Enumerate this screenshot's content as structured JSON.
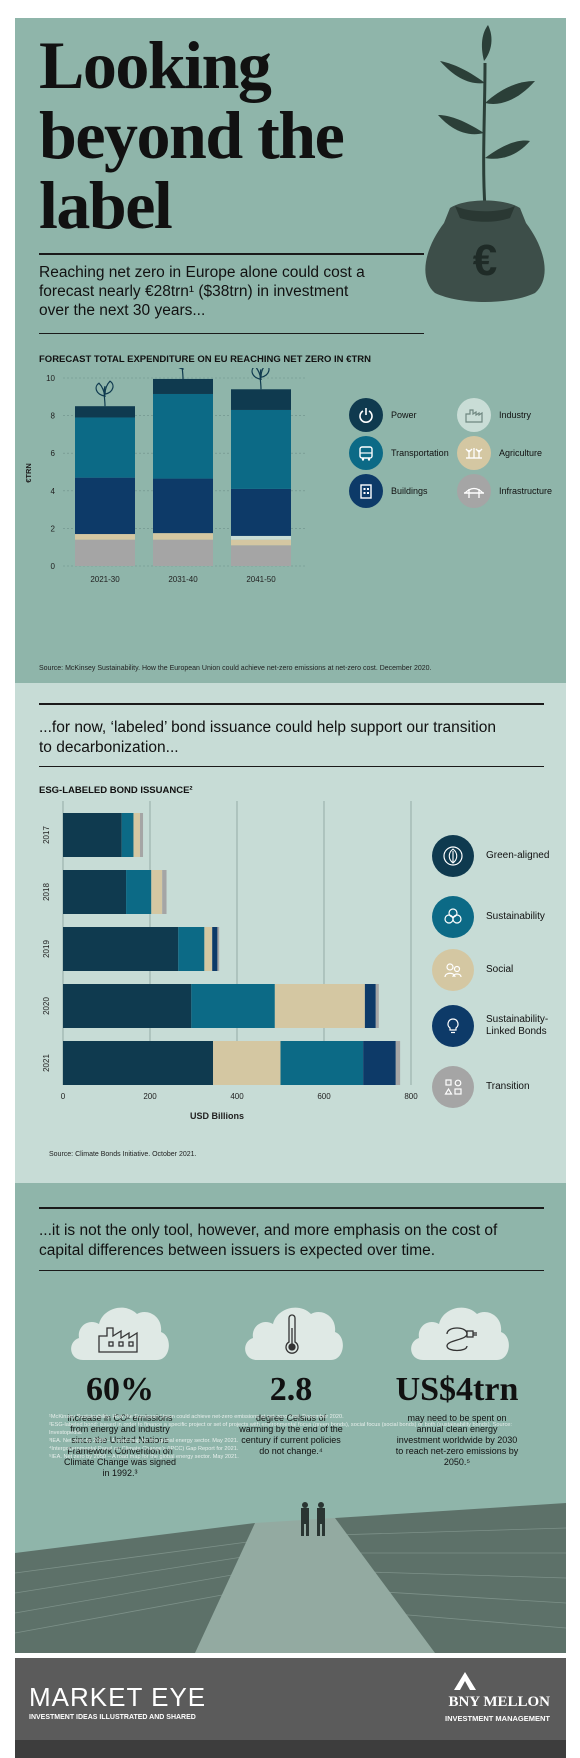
{
  "header": {
    "title": "Looking beyond the label",
    "intro": "Reaching net zero in Europe alone could cost a forecast nearly €28trn¹ ($38trn) in investment over the next 30 years..."
  },
  "colors": {
    "power": "#0f3a4f",
    "transportation": "#0c6a86",
    "buildings": "#0d3a68",
    "industry": "#c9ddd6",
    "agriculture": "#d4c7a2",
    "infrastructure": "#a5a5a5",
    "green": "#0f3a4f",
    "sustainability": "#0c6a86",
    "social": "#d4c7a2",
    "slb": "#0d3a68",
    "transition": "#a5a5a5"
  },
  "chart1": {
    "title": "FORECAST TOTAL EXPENDITURE ON EU REACHING NET ZERO IN €TRN",
    "ylabel": "€TRN",
    "yticks": [
      "0",
      "2",
      "4",
      "6",
      "8",
      "10"
    ],
    "source": "Source: McKinsey Sustainability. How the European Union could achieve net-zero emissions at net-zero cost. December 2020.",
    "legend": [
      {
        "label": "Power",
        "icon": "power-icon"
      },
      {
        "label": "Industry",
        "icon": "factory-icon"
      },
      {
        "label": "Transportation",
        "icon": "bus-icon"
      },
      {
        "label": "Agriculture",
        "icon": "farm-icon"
      },
      {
        "label": "Buildings",
        "icon": "building-icon"
      },
      {
        "label": "Infrastructure",
        "icon": "bridge-icon"
      }
    ]
  },
  "section2": {
    "lead": "...for now, ‘labeled’ bond issuance could help support our transition to decarbonization...",
    "chart_title": "ESG-LABELED BOND ISSUANCE²",
    "xlabel": "USD Billions",
    "xticks": [
      "0",
      "200",
      "400",
      "600",
      "800"
    ],
    "years": [
      "2017",
      "2018",
      "2019",
      "2020",
      "2021"
    ],
    "source": "Source: Climate Bonds Initiative. October 2021.",
    "legend": [
      {
        "label": "Green-aligned",
        "icon": "leaf-icon"
      },
      {
        "label": "Sustainability",
        "icon": "recycle-icon"
      },
      {
        "label": "Social",
        "icon": "people-icon"
      },
      {
        "label": "Sustainability-Linked Bonds",
        "icon": "lightbulb-icon"
      },
      {
        "label": "Transition",
        "icon": "shapes-icon"
      }
    ]
  },
  "section3": {
    "lead": "...it is not the only tool, however, and more emphasis on the cost of capital differences between issuers is expected over time.",
    "stats": [
      {
        "value": "60%",
        "text": "increase in CO² emissions from energy and industry since the United Nations Framework Convention on Climate Change was signed in 1992.³",
        "icon": "factory-icon"
      },
      {
        "value": "2.8",
        "text": "degree Celsius of warming by the end of the century if current policies do not change.⁴",
        "icon": "thermometer-icon"
      },
      {
        "value": "US$4trn",
        "text": "may need to be spent on annual clean energy investment worldwide by 2030 to reach net-zero emissions by 2050.⁵",
        "icon": "plug-icon"
      }
    ],
    "notes": [
      "¹McKinsey Sustainability. How the European Union could achieve net-zero emissions at net-zero cost. December 2020.",
      "²ESG-labeled bond: issued in order to finance a specific project or set of projects with environmental focus (green bonds), social focus (social bonds) or both (sustainability bonds). Source: Investopedia.",
      "³IEA. Net zero by 2050 – A road map for the global energy sector. May 2021.",
      "⁴Intergovernmental Panel on Climate Change's (IPCC) Gap Report for 2021.",
      "⁵IEA. Net zero by 2050 – A road map for the global energy sector. May 2021."
    ]
  },
  "footer": {
    "brand": "MARKET EYE",
    "brand_sub": "INVESTMENT IDEAS ILLUSTRATED AND SHARED",
    "company": "BNY MELLON",
    "company_sub": "INVESTMENT MANAGEMENT"
  },
  "chart_data": [
    {
      "type": "bar",
      "stacked": true,
      "title": "FORECAST TOTAL EXPENDITURE ON EU REACHING NET ZERO IN €TRN",
      "ylabel": "€TRN",
      "ylim": [
        0,
        10
      ],
      "categories": [
        "2021-30",
        "2031-40",
        "2041-50"
      ],
      "series": [
        {
          "name": "Infrastructure",
          "values": [
            1.4,
            1.4,
            1.1
          ]
        },
        {
          "name": "Agriculture",
          "values": [
            0.3,
            0.35,
            0.3
          ]
        },
        {
          "name": "Industry",
          "values": [
            0.0,
            0.0,
            0.2
          ]
        },
        {
          "name": "Buildings",
          "values": [
            3.0,
            2.9,
            2.5
          ]
        },
        {
          "name": "Transportation",
          "values": [
            3.2,
            4.5,
            4.2
          ]
        },
        {
          "name": "Power",
          "values": [
            0.6,
            0.8,
            1.1
          ]
        }
      ]
    },
    {
      "type": "bar",
      "orientation": "horizontal",
      "stacked": true,
      "title": "ESG-LABELED BOND ISSUANCE²",
      "xlabel": "USD Billions",
      "xlim": [
        0,
        800
      ],
      "categories": [
        "2017",
        "2018",
        "2019",
        "2020",
        "2021"
      ],
      "rows": [
        {
          "year": "2017",
          "segments": [
            {
              "name": "Green-aligned",
              "value": 135
            },
            {
              "name": "Sustainability",
              "value": 27
            },
            {
              "name": "Social",
              "value": 15
            },
            {
              "name": "Transition",
              "value": 7
            }
          ]
        },
        {
          "year": "2018",
          "segments": [
            {
              "name": "Green-aligned",
              "value": 145
            },
            {
              "name": "Sustainability",
              "value": 58
            },
            {
              "name": "Social",
              "value": 25
            },
            {
              "name": "Transition",
              "value": 10
            }
          ]
        },
        {
          "year": "2019",
          "segments": [
            {
              "name": "Green-aligned",
              "value": 265
            },
            {
              "name": "Sustainability",
              "value": 60
            },
            {
              "name": "Social",
              "value": 18
            },
            {
              "name": "Sustainability-Linked Bonds",
              "value": 12
            },
            {
              "name": "Transition",
              "value": 4
            }
          ]
        },
        {
          "year": "2020",
          "segments": [
            {
              "name": "Green-aligned",
              "value": 295
            },
            {
              "name": "Sustainability",
              "value": 192
            },
            {
              "name": "Social",
              "value": 207
            },
            {
              "name": "Sustainability-Linked Bonds",
              "value": 25
            },
            {
              "name": "Transition",
              "value": 7
            }
          ]
        },
        {
          "year": "2021",
          "segments": [
            {
              "name": "Green-aligned",
              "value": 345
            },
            {
              "name": "Social",
              "value": 155
            },
            {
              "name": "Sustainability",
              "value": 190
            },
            {
              "name": "Sustainability-Linked Bonds",
              "value": 75
            },
            {
              "name": "Transition",
              "value": 10
            }
          ]
        }
      ]
    }
  ]
}
